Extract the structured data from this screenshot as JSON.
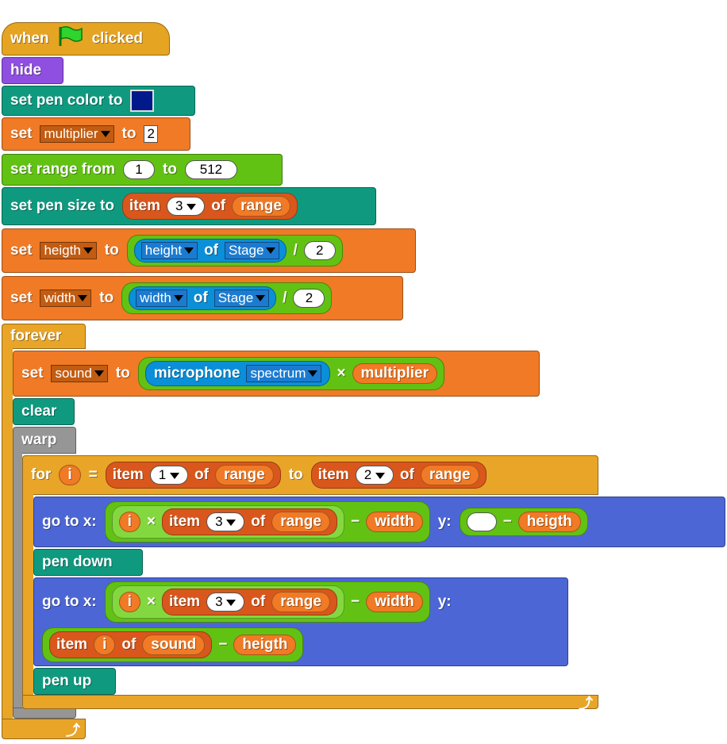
{
  "hat": {
    "when": "when",
    "clicked": "clicked"
  },
  "hide": "hide",
  "pen_color": {
    "label": "set pen color to",
    "swatch": "#001a8c"
  },
  "set_mult": {
    "set": "set",
    "var": "multiplier",
    "to": "to",
    "value": "2"
  },
  "set_range": {
    "label": "set range from",
    "from": "1",
    "to_label": "to",
    "to": "512"
  },
  "pen_size": {
    "label": "set pen size to",
    "item": "item",
    "index": "3",
    "of": "of",
    "list": "range"
  },
  "set_heigth": {
    "set": "set",
    "var": "heigth",
    "to": "to",
    "attr": "height",
    "of": "of",
    "obj": "Stage",
    "op": "/",
    "num": "2"
  },
  "set_width": {
    "set": "set",
    "var": "width",
    "to": "to",
    "attr": "width",
    "of": "of",
    "obj": "Stage",
    "op": "/",
    "num": "2"
  },
  "forever": "forever",
  "set_sound": {
    "set": "set",
    "var": "sound",
    "to": "to",
    "sensor": "microphone",
    "mode": "spectrum",
    "times": "×",
    "mult": "multiplier"
  },
  "clear": "clear",
  "warp": "warp",
  "for_loop": {
    "for": "for",
    "var": "i",
    "eq": "=",
    "item": "item",
    "i1": "1",
    "of": "of",
    "list": "range",
    "to": "to",
    "i2": "2"
  },
  "goto1": {
    "label": "go to x:",
    "i": "i",
    "times": "×",
    "item": "item",
    "idx": "3",
    "of": "of",
    "list": "range",
    "minus": "−",
    "width": "width",
    "y": "y:",
    "heigth": "heigth"
  },
  "pen_down": "pen down",
  "goto2": {
    "label": "go to x:",
    "i": "i",
    "times": "×",
    "item": "item",
    "idx": "3",
    "of": "of",
    "list": "range",
    "minus": "−",
    "width": "width",
    "y": "y:",
    "item2": "item",
    "of2": "of",
    "sound": "sound",
    "heigth": "heigth"
  },
  "pen_up": "pen up",
  "colors": {
    "events": "#e6a423",
    "pen": "#0f9a80",
    "vars": "#f07a25",
    "ops": "#62c213",
    "motion": "#4c66d6",
    "control": "#e8a527",
    "sensing": "#0a8fd8"
  }
}
